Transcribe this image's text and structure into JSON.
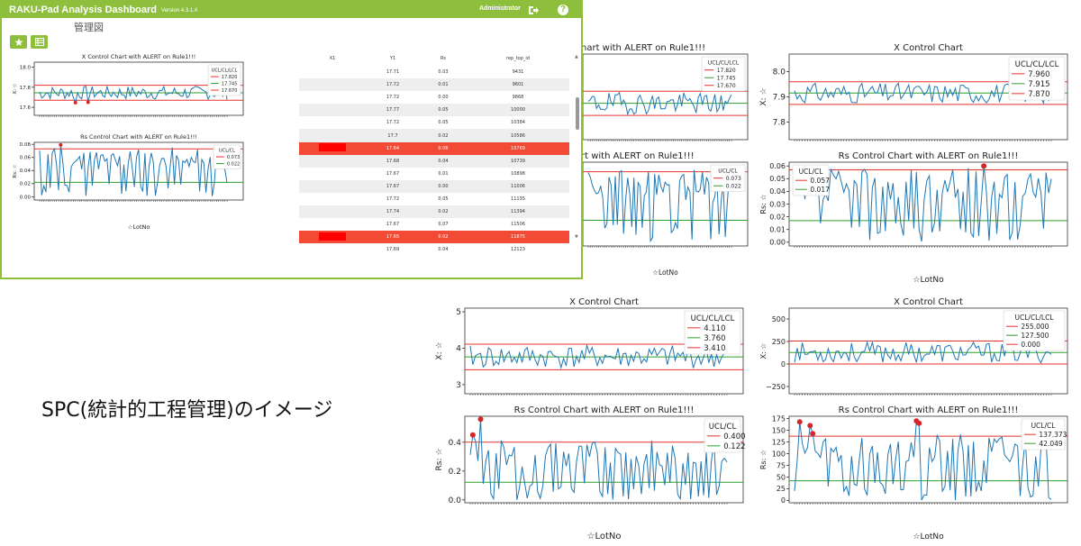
{
  "caption": "SPC(統計的工程管理)のイメージ",
  "dashboard": {
    "brand": "RAKU-Pad Analysis Dashboard",
    "version": "Version 4.3.1.4",
    "user": "Administrator",
    "page_title": "管理図",
    "table": {
      "columns": [
        "X1",
        "Y1",
        "Rs",
        "rep_top_id"
      ],
      "rows": [
        {
          "x1": "",
          "y1": "17.71",
          "rs": "0.03",
          "id": "9431",
          "alert": false
        },
        {
          "x1": "",
          "y1": "17.72",
          "rs": "0.01",
          "id": "9601",
          "alert": false
        },
        {
          "x1": "",
          "y1": "17.72",
          "rs": "0.00",
          "id": "9868",
          "alert": false
        },
        {
          "x1": "",
          "y1": "17.77",
          "rs": "0.05",
          "id": "10000",
          "alert": false
        },
        {
          "x1": "",
          "y1": "17.72",
          "rs": "0.05",
          "id": "10384",
          "alert": false
        },
        {
          "x1": "",
          "y1": "17.7",
          "rs": "0.02",
          "id": "10586",
          "alert": false
        },
        {
          "x1": "",
          "y1": "17.64",
          "rs": "0.06",
          "id": "10769",
          "alert": true
        },
        {
          "x1": "",
          "y1": "17.68",
          "rs": "0.04",
          "id": "10739",
          "alert": false
        },
        {
          "x1": "",
          "y1": "17.67",
          "rs": "0.01",
          "id": "10898",
          "alert": false
        },
        {
          "x1": "",
          "y1": "17.67",
          "rs": "0.00",
          "id": "11006",
          "alert": false
        },
        {
          "x1": "",
          "y1": "17.72",
          "rs": "0.05",
          "id": "11135",
          "alert": false
        },
        {
          "x1": "",
          "y1": "17.74",
          "rs": "0.02",
          "id": "11394",
          "alert": false
        },
        {
          "x1": "",
          "y1": "17.67",
          "rs": "0.07",
          "id": "11506",
          "alert": false
        },
        {
          "x1": "",
          "y1": "17.65",
          "rs": "0.02",
          "id": "11875",
          "alert": true
        },
        {
          "x1": "",
          "y1": "17.69",
          "rs": "0.04",
          "id": "12123",
          "alert": false
        }
      ]
    }
  },
  "colors": {
    "brand": "#8dbf3c",
    "line": "#1f77b4",
    "ucl_lcl": "#e8302a",
    "cl": "#2ca02c",
    "alert_point": "#d62728",
    "alert_row": "#f34a36"
  },
  "chart_data": [
    {
      "id": "dash-x",
      "type": "line",
      "title": "X Control Chart with ALERT on Rule1!!!",
      "ylabel": "X: ☆",
      "xlabel": "",
      "legend_title": "UCL/CL/LCL",
      "legend_labels": [
        "17.820",
        "17.745",
        "17.670"
      ],
      "ucl": 17.82,
      "cl": 17.745,
      "lcl": 17.67,
      "ylim": [
        17.52,
        18.05
      ],
      "yticks": [
        17.6,
        17.8,
        18.0
      ],
      "ytick_labels": [
        "17.6",
        "17.8",
        "18.0"
      ],
      "seed": 7,
      "alerts": [],
      "abs_alerts": [
        {
          "i": 17,
          "y": 17.647
        },
        {
          "i": 23,
          "y": 17.65
        }
      ]
    },
    {
      "id": "dash-rs",
      "type": "line",
      "title": "Rs Control Chart with ALERT on Rule1!!!",
      "ylabel": "Rs: ☆",
      "xlabel": "☆LotNo",
      "legend_title": "UCL/CL",
      "legend_labels": [
        "0.073",
        "0.022"
      ],
      "ucl": 0.073,
      "cl": 0.022,
      "ylim": [
        -0.005,
        0.083
      ],
      "yticks": [
        0,
        0.02,
        0.04,
        0.06,
        0.08
      ],
      "ytick_labels": [
        "0.00",
        "0.02",
        "0.04",
        "0.06",
        "0.08"
      ],
      "seed": 11,
      "abs_alerts": [
        {
          "i": 10,
          "y": 0.079
        }
      ]
    },
    {
      "id": "chart-a-x",
      "type": "line",
      "title": "X Control Chart with ALERT on Rule1!!!",
      "ylabel": "",
      "xlabel": "",
      "legend_title": "UCL/CL/LCL",
      "legend_labels": [
        "17.820",
        "17.745",
        "17.670"
      ],
      "ucl": 17.82,
      "cl": 17.745,
      "lcl": 17.67,
      "ylim": [
        17.52,
        18.05
      ],
      "yticks": [],
      "ytick_labels": [],
      "seed": 19,
      "abs_alerts": []
    },
    {
      "id": "chart-a-rs",
      "type": "line",
      "title": "Rs Control Chart with ALERT on Rule1!!!",
      "ylabel": "",
      "xlabel": "☆LotNo",
      "legend_title": "UCL/CL",
      "legend_labels": [
        "0.073",
        "0.022"
      ],
      "ucl": 0.073,
      "cl": 0.022,
      "ylim": [
        -0.005,
        0.083
      ],
      "yticks": [],
      "ytick_labels": [],
      "seed": 23,
      "abs_alerts": []
    },
    {
      "id": "chart-b-x",
      "type": "line",
      "title": "X Control Chart",
      "ylabel": "X: ☆",
      "xlabel": "",
      "legend_title": "UCL/CL/LCL",
      "legend_labels": [
        "7.960",
        "7.915",
        "7.870"
      ],
      "ucl": 7.96,
      "cl": 7.915,
      "lcl": 7.87,
      "ylim": [
        7.73,
        8.07
      ],
      "yticks": [
        7.8,
        7.9,
        8.0
      ],
      "ytick_labels": [
        "7.8",
        "7.9",
        "8.0"
      ],
      "seed": 31,
      "abs_alerts": []
    },
    {
      "id": "chart-b-rs",
      "type": "line",
      "title": "Rs Control Chart with ALERT on Rule1!!!",
      "ylabel": "Rs: ☆",
      "xlabel": "☆LotNo",
      "legend_title": "UCL/CL",
      "legend_labels": [
        "0.057",
        "0.017"
      ],
      "ucl": 0.057,
      "cl": 0.017,
      "ylim": [
        -0.003,
        0.063
      ],
      "yticks": [
        0,
        0.01,
        0.02,
        0.03,
        0.04,
        0.05,
        0.06
      ],
      "ytick_labels": [
        "0.00",
        "0.01",
        "0.02",
        "0.03",
        "0.04",
        "0.05",
        "0.06"
      ],
      "seed": 37,
      "abs_alerts": [
        {
          "i": 73,
          "y": 0.06
        }
      ]
    },
    {
      "id": "chart-c-x",
      "type": "line",
      "title": "X Control Chart",
      "ylabel": "X: ☆",
      "xlabel": "",
      "legend_title": "UCL/CL/LCL",
      "legend_labels": [
        "4.110",
        "3.760",
        "3.410"
      ],
      "ucl": 4.11,
      "cl": 3.76,
      "lcl": 3.41,
      "ylim": [
        2.75,
        5.1
      ],
      "yticks": [
        3,
        4,
        5
      ],
      "ytick_labels": [
        "3",
        "4",
        "5"
      ],
      "seed": 41,
      "abs_alerts": []
    },
    {
      "id": "chart-c-rs",
      "type": "line",
      "title": "Rs Control Chart with ALERT on Rule1!!!",
      "ylabel": "Rs: ☆",
      "xlabel": "☆LotNo",
      "legend_title": "UCL/CL",
      "legend_labels": [
        "0.400",
        "0.122"
      ],
      "ucl": 0.4,
      "cl": 0.122,
      "ylim": [
        -0.02,
        0.58
      ],
      "yticks": [
        0,
        0.2,
        0.4
      ],
      "ytick_labels": [
        "0.0",
        "0.2",
        "0.4"
      ],
      "seed": 43,
      "abs_alerts": [
        {
          "i": 1,
          "y": 0.45
        },
        {
          "i": 4,
          "y": 0.56
        }
      ]
    },
    {
      "id": "chart-d-x",
      "type": "line",
      "title": "X Control Chart",
      "ylabel": "X: ☆",
      "xlabel": "",
      "legend_title": "UCL/CL/LCL",
      "legend_labels": [
        "255.000",
        "127.500",
        "0.000"
      ],
      "ucl": 255,
      "cl": 127.5,
      "lcl": 0,
      "ylim": [
        -330,
        620
      ],
      "yticks": [
        -250,
        0,
        250,
        500
      ],
      "ytick_labels": [
        "−250",
        "0",
        "250",
        "500"
      ],
      "seed": 53,
      "abs_alerts": []
    },
    {
      "id": "chart-d-rs",
      "type": "line",
      "title": "Rs Control Chart with ALERT on Rule1!!!",
      "ylabel": "Rs: ☆",
      "xlabel": "☆LotNo",
      "legend_title": "UCL/CL",
      "legend_labels": [
        "137.373",
        "42.049"
      ],
      "ucl": 137.373,
      "cl": 42.049,
      "ylim": [
        -5,
        180
      ],
      "yticks": [
        0,
        25,
        50,
        75,
        100,
        125,
        150,
        175
      ],
      "ytick_labels": [
        "0",
        "25",
        "50",
        "75",
        "100",
        "125",
        "150",
        "175"
      ],
      "seed": 59,
      "abs_alerts": [
        {
          "i": 2,
          "y": 168
        },
        {
          "i": 6,
          "y": 160
        },
        {
          "i": 7,
          "y": 143
        },
        {
          "i": 47,
          "y": 170
        },
        {
          "i": 48,
          "y": 165
        }
      ]
    }
  ]
}
